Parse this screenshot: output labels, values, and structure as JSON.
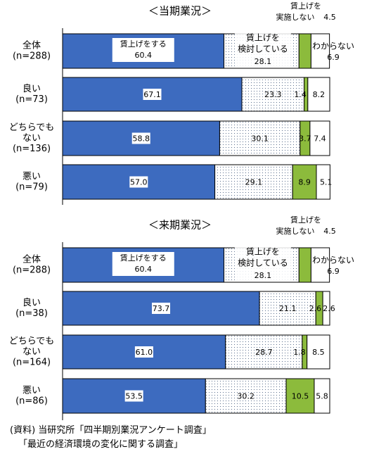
{
  "chart_data": [
    {
      "type": "bar",
      "stacked": true,
      "orientation": "horizontal",
      "title": "＜当期業況＞",
      "xlim": [
        0,
        100
      ],
      "categories": [
        [
          "全体",
          "(n=288)"
        ],
        [
          "良い",
          "(n=73)"
        ],
        [
          "どちらでも",
          "ない",
          "(n=136)"
        ],
        [
          "悪い",
          "(n=79)"
        ]
      ],
      "series": [
        {
          "name": "賃上げをする",
          "color": "#3d6bbf",
          "pattern": "solid",
          "values": [
            60.4,
            67.1,
            58.8,
            57.0
          ]
        },
        {
          "name": "賃上げを検討している",
          "color": "#ffffff",
          "pattern": "dots",
          "values": [
            28.1,
            23.3,
            30.1,
            29.1
          ]
        },
        {
          "name": "賃上げを実施しない",
          "color": "#8cbb3c",
          "pattern": "solid",
          "values": [
            4.5,
            1.4,
            3.7,
            8.9
          ]
        },
        {
          "name": "わからない",
          "color": "#ffffff",
          "pattern": "solid",
          "values": [
            6.9,
            8.2,
            7.4,
            5.1
          ]
        }
      ],
      "annotations": {
        "do_label": "賃上げをする",
        "do_value": "60.4",
        "consider_label": [
          "賃上げを",
          "検討している"
        ],
        "consider_value": "28.1",
        "not_label": [
          "賃上げを",
          "実施しない"
        ],
        "not_value": "4.5",
        "unknown_label": "わからない",
        "unknown_value": "6.9"
      },
      "value_labels": [
        [
          "",
          "",
          "",
          ""
        ],
        [
          "67.1",
          "23.3",
          "1.4",
          "8.2"
        ],
        [
          "58.8",
          "30.1",
          "3.7",
          "7.4"
        ],
        [
          "57.0",
          "29.1",
          "8.9",
          "5.1"
        ]
      ]
    },
    {
      "type": "bar",
      "stacked": true,
      "orientation": "horizontal",
      "title": "＜来期業況＞",
      "xlim": [
        0,
        100
      ],
      "categories": [
        [
          "全体",
          "(n=288)"
        ],
        [
          "良い",
          "(n=38)"
        ],
        [
          "どちらでも",
          "ない",
          "(n=164)"
        ],
        [
          "悪い",
          "(n=86)"
        ]
      ],
      "series": [
        {
          "name": "賃上げをする",
          "color": "#3d6bbf",
          "pattern": "solid",
          "values": [
            60.4,
            73.7,
            61.0,
            53.5
          ]
        },
        {
          "name": "賃上げを検討している",
          "color": "#ffffff",
          "pattern": "dots",
          "values": [
            28.1,
            21.1,
            28.7,
            30.2
          ]
        },
        {
          "name": "賃上げを実施しない",
          "color": "#8cbb3c",
          "pattern": "solid",
          "values": [
            4.5,
            2.6,
            1.8,
            10.5
          ]
        },
        {
          "name": "わからない",
          "color": "#ffffff",
          "pattern": "solid",
          "values": [
            6.9,
            2.6,
            8.5,
            5.8
          ]
        }
      ],
      "annotations": {
        "do_label": "賃上げをする",
        "do_value": "60.4",
        "consider_label": [
          "賃上げを",
          "検討している"
        ],
        "consider_value": "28.1",
        "not_label": [
          "賃上げを",
          "実施しない"
        ],
        "not_value": "4.5",
        "unknown_label": "わからない",
        "unknown_value": "6.9"
      },
      "value_labels": [
        [
          "",
          "",
          "",
          ""
        ],
        [
          "73.7",
          "21.1",
          "2.6",
          "2.6"
        ],
        [
          "61.0",
          "28.7",
          "1.8",
          "8.5"
        ],
        [
          "53.5",
          "30.2",
          "10.5",
          "5.8"
        ]
      ]
    }
  ],
  "source": {
    "line1": "(資料) 当研究所「四半期別業況アンケート調査」",
    "line2": "「最近の経済環境の変化に関する調査」"
  }
}
